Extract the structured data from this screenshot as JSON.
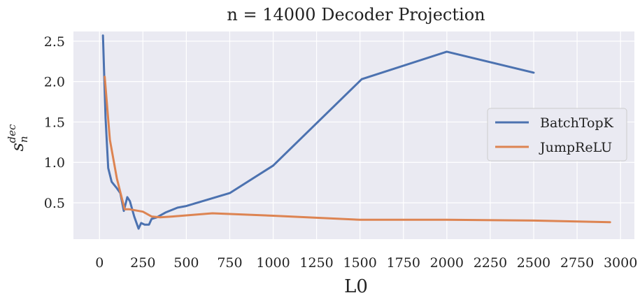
{
  "chart_data": {
    "type": "line",
    "title": "n = 14000 Decoder Projection",
    "xlabel": "L0",
    "ylabel": "s_n^dec",
    "ylabel_base": "s",
    "ylabel_sub": "n",
    "ylabel_sup": "dec",
    "xlim": [
      -150,
      3080
    ],
    "ylim": [
      0.05,
      2.62
    ],
    "xticks": [
      0,
      250,
      500,
      750,
      1000,
      1250,
      1500,
      1750,
      2000,
      2250,
      2500,
      2750,
      3000
    ],
    "xtick_labels": [
      "0",
      "250",
      "500",
      "750",
      "1000",
      "1250",
      "1500",
      "1750",
      "2000",
      "2250",
      "2500",
      "2750",
      "3000"
    ],
    "yticks": [
      0.5,
      1.0,
      1.5,
      2.0,
      2.5
    ],
    "ytick_labels": [
      "0.5",
      "1.0",
      "1.5",
      "2.0",
      "2.5"
    ],
    "grid": true,
    "legend_position": "right",
    "background_color": "#eaeaf2",
    "series": [
      {
        "name": "BatchTopK",
        "color": "#4c72b0",
        "x": [
          20,
          35,
          50,
          70,
          100,
          120,
          140,
          160,
          175,
          200,
          225,
          240,
          260,
          285,
          300,
          330,
          380,
          450,
          500,
          750,
          1000,
          1510,
          2000,
          2500
        ],
        "y": [
          2.57,
          1.55,
          0.93,
          0.76,
          0.68,
          0.62,
          0.4,
          0.57,
          0.52,
          0.33,
          0.18,
          0.25,
          0.23,
          0.23,
          0.3,
          0.32,
          0.38,
          0.44,
          0.46,
          0.62,
          0.96,
          2.03,
          2.37,
          2.11
        ]
      },
      {
        "name": "JumpReLU",
        "color": "#dd8452",
        "x": [
          30,
          60,
          100,
          145,
          170,
          250,
          300,
          350,
          420,
          650,
          1000,
          1500,
          1750,
          2000,
          2500,
          2940
        ],
        "y": [
          2.06,
          1.28,
          0.8,
          0.42,
          0.42,
          0.39,
          0.33,
          0.32,
          0.33,
          0.37,
          0.34,
          0.29,
          0.29,
          0.29,
          0.28,
          0.26
        ]
      }
    ]
  }
}
